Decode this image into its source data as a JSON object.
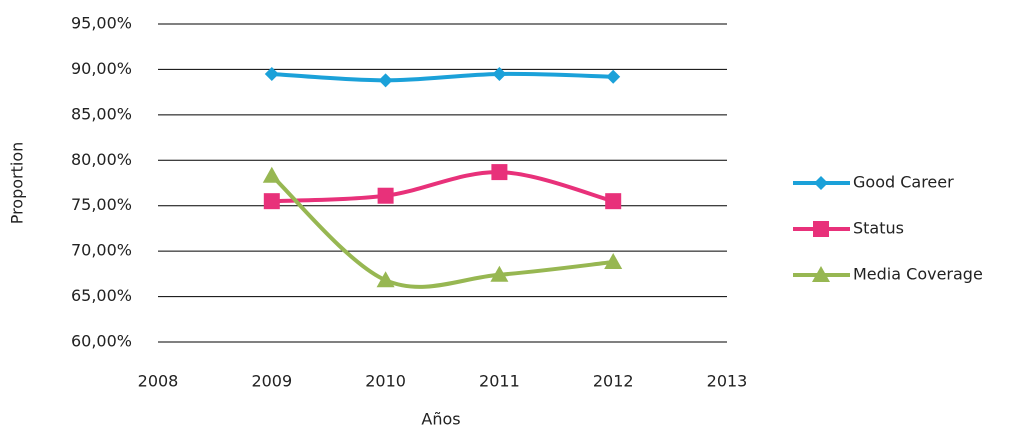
{
  "chart_data": {
    "type": "line",
    "x_label": "Años",
    "y_label": "Proportion",
    "x": [
      2009,
      2010,
      2011,
      2012
    ],
    "series": [
      {
        "name": "Good Career",
        "color": "#1ba1d9",
        "marker": "diamond",
        "values": [
          89.5,
          88.8,
          89.5,
          89.2
        ]
      },
      {
        "name": "Status",
        "color": "#e8317a",
        "marker": "square",
        "values": [
          75.5,
          76.1,
          78.7,
          75.5
        ]
      },
      {
        "name": "Media Coverage",
        "color": "#97b752",
        "marker": "triangle",
        "values": [
          78.3,
          66.8,
          67.4,
          68.8
        ]
      }
    ],
    "xlim": [
      2008,
      2013
    ],
    "xticks": [
      2008,
      2009,
      2010,
      2011,
      2012,
      2013
    ],
    "ylim": [
      60,
      95
    ],
    "yticks": [
      {
        "value": 60,
        "label": "60,00%"
      },
      {
        "value": 65,
        "label": "65,00%"
      },
      {
        "value": 70,
        "label": "70,00%"
      },
      {
        "value": 75,
        "label": "75,00%"
      },
      {
        "value": 80,
        "label": "80,00%"
      },
      {
        "value": 85,
        "label": "85,00%"
      },
      {
        "value": 90,
        "label": "90,00%"
      },
      {
        "value": 95,
        "label": "95,00%"
      }
    ],
    "grid": true,
    "smooth": true,
    "legend": "right"
  }
}
